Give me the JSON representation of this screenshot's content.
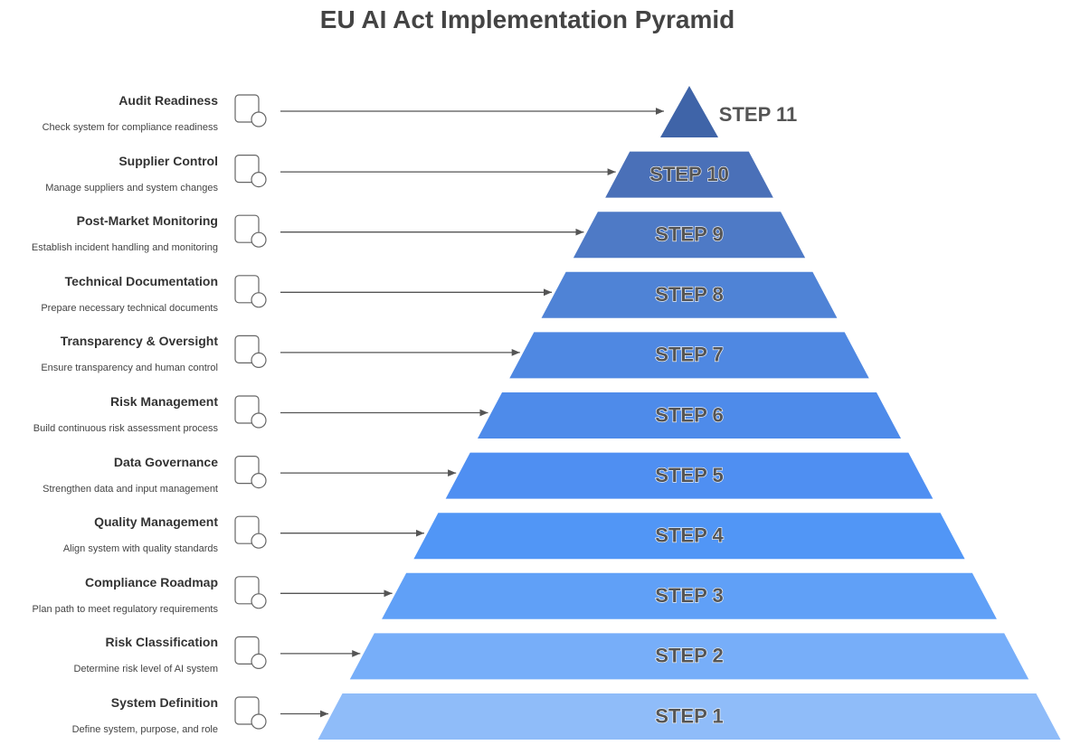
{
  "title": "EU AI Act Implementation Pyramid",
  "steps": [
    {
      "label": "Audit Readiness",
      "description": "Check system for compliance readiness",
      "step": "STEP 11"
    },
    {
      "label": "Supplier Control",
      "description": "Manage suppliers and system changes",
      "step": "STEP 10"
    },
    {
      "label": "Post-Market Monitoring",
      "description": "Establish incident handling and monitoring",
      "step": "STEP 9"
    },
    {
      "label": "Technical Documentation",
      "description": "Prepare necessary technical documents",
      "step": "STEP 8"
    },
    {
      "label": "Transparency & Oversight",
      "description": "Ensure transparency and human control",
      "step": "STEP 7"
    },
    {
      "label": "Risk Management",
      "description": "Build continuous risk assessment process",
      "step": "STEP 6"
    },
    {
      "label": "Data Governance",
      "description": "Strengthen data and input management",
      "step": "STEP 5"
    },
    {
      "label": "Quality Management",
      "description": "Align system with quality standards",
      "step": "STEP 4"
    },
    {
      "label": "Compliance Roadmap",
      "description": "Plan path to meet regulatory requirements",
      "step": "STEP 3"
    },
    {
      "label": "Risk Classification",
      "description": "Determine risk level of AI system",
      "step": "STEP 2"
    },
    {
      "label": "System Definition",
      "description": "Define system, purpose, and role",
      "step": "STEP 1"
    }
  ]
}
